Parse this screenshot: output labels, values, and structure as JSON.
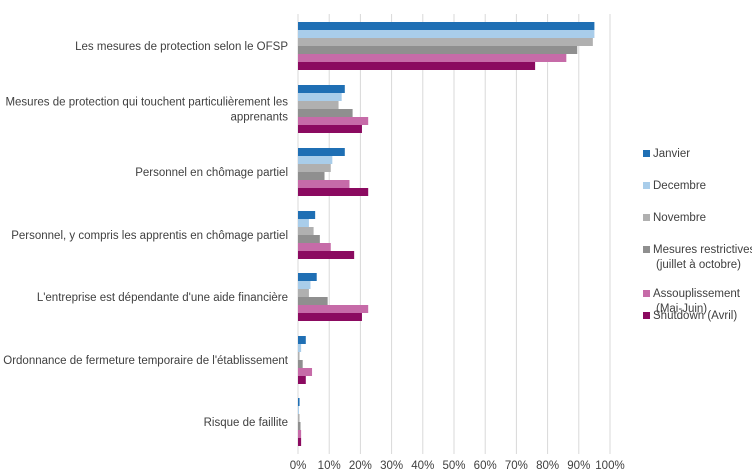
{
  "chart_data": {
    "type": "bar",
    "orientation": "horizontal",
    "categories": [
      [
        "Les mesures de protection selon le OFSP"
      ],
      [
        "Mesures de protection qui touchent particulièrement les",
        "apprenants"
      ],
      [
        "Personnel en chômage partiel"
      ],
      [
        "Personnel, y compris les apprentis en chômage partiel"
      ],
      [
        "L'entreprise est dépendante d'une aide financière"
      ],
      [
        "Ordonnance de fermeture temporaire de l'établissement"
      ],
      [
        "Risque de faillite"
      ]
    ],
    "series": [
      {
        "name": "Janvier",
        "color": "#1f6fb4",
        "values": [
          95,
          15,
          15,
          5.5,
          6,
          2.5,
          0.5
        ]
      },
      {
        "name": "Decembre",
        "color": "#a9cdea",
        "values": [
          95,
          14,
          11,
          3.5,
          4,
          1,
          0.3
        ]
      },
      {
        "name": "Novembre",
        "color": "#b0b0b0",
        "values": [
          94.5,
          13,
          10.5,
          5,
          3.5,
          0.5,
          0.5
        ]
      },
      {
        "name": "Mesures restrictives (juillet à octobre)",
        "legend_lines": [
          "Mesures restrictives",
          "(juillet à octobre)"
        ],
        "color": "#8f8f8f",
        "values": [
          89.5,
          17.5,
          8.5,
          7,
          9.5,
          1.5,
          0.8
        ]
      },
      {
        "name": "Assouplissement (Mai-Juin)",
        "legend_lines": [
          "Assouplissement",
          "(Mai-Juin)"
        ],
        "color": "#c66ba8",
        "values": [
          86,
          22.5,
          16.5,
          10.5,
          22.5,
          4.5,
          1
        ]
      },
      {
        "name": "Shutdown (Avril)",
        "color": "#8b0a60",
        "values": [
          76,
          20.5,
          22.5,
          18,
          20.5,
          2.5,
          1
        ]
      }
    ],
    "x_ticks": [
      "0%",
      "10%",
      "20%",
      "30%",
      "40%",
      "50%",
      "60%",
      "70%",
      "80%",
      "90%",
      "100%"
    ],
    "xlim": [
      0,
      100
    ],
    "grid": true,
    "legend_position": "right",
    "title": "",
    "xlabel": "",
    "ylabel": ""
  }
}
